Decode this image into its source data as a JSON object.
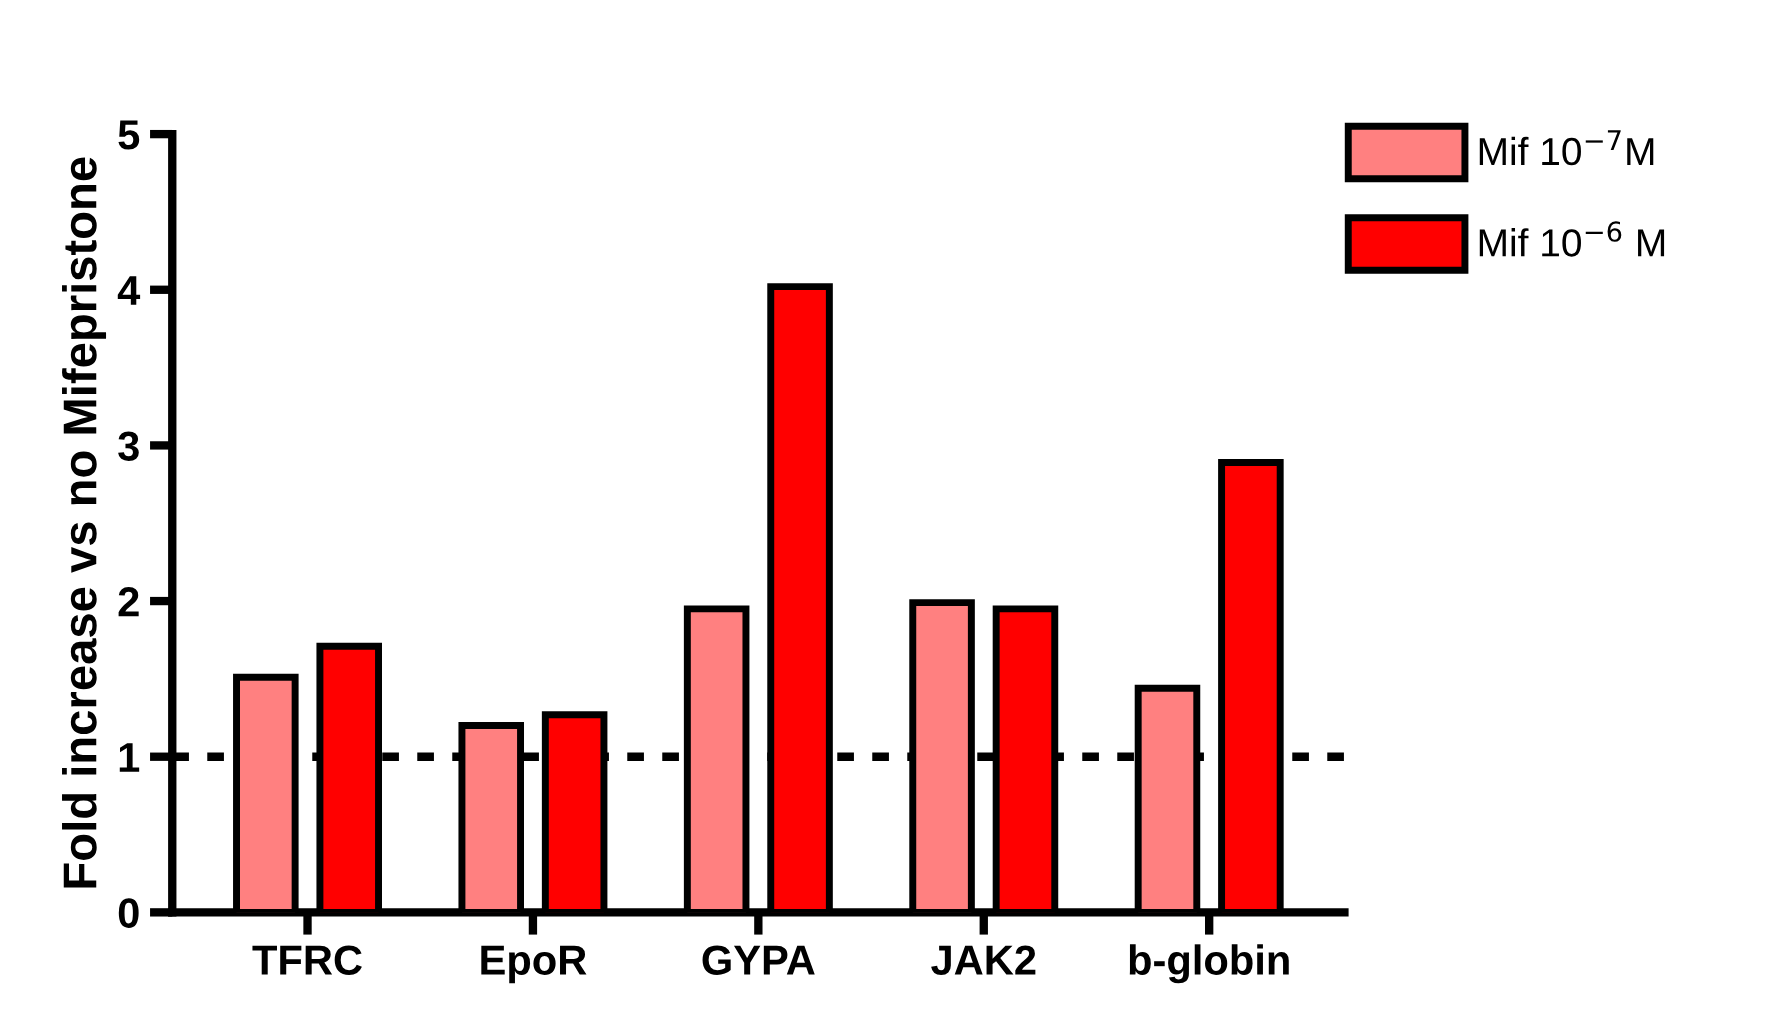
{
  "chart_data": {
    "type": "bar",
    "ylabel": "Fold increase vs no Mifepristone",
    "categories": [
      "TFRC",
      "EpoR",
      "GYPA",
      "JAK2",
      "b-globin"
    ],
    "series": [
      {
        "name": "Mif 10$^{−7}$M",
        "color": "#ff8080",
        "values": [
          1.51,
          1.2,
          1.95,
          1.99,
          1.44
        ]
      },
      {
        "name": "Mif 10$^{−6}$ M",
        "color": "#ff0000",
        "values": [
          1.71,
          1.27,
          4.02,
          1.95,
          2.89
        ]
      }
    ],
    "ylim": [
      0,
      5
    ],
    "yticks": [
      0,
      1,
      2,
      3,
      4,
      5
    ],
    "grid": false,
    "legend": "top right",
    "ref_lines": [
      {
        "axis": "y",
        "value": 1,
        "line_style": "dashed",
        "color": "#000000"
      }
    ]
  }
}
